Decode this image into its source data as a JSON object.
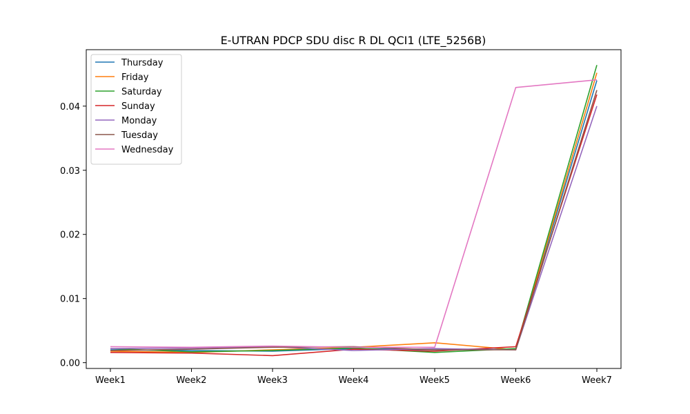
{
  "chart_data": {
    "type": "line",
    "title": "E-UTRAN PDCP SDU disc R DL QCI1 (LTE_5256B)",
    "xlabel": "",
    "ylabel": "",
    "categories": [
      "Week1",
      "Week2",
      "Week3",
      "Week4",
      "Week5",
      "Week6",
      "Week7"
    ],
    "yticks": [
      "0.00",
      "0.01",
      "0.02",
      "0.03",
      "0.04"
    ],
    "ylim": [
      -0.0009,
      0.0488
    ],
    "grid": false,
    "legend_position": "top-left",
    "series": [
      {
        "name": "Thursday",
        "color": "#1f77b4",
        "values": [
          0.002,
          0.0019,
          0.0018,
          0.0022,
          0.002,
          0.0021,
          0.044
        ]
      },
      {
        "name": "Friday",
        "color": "#ff7f0e",
        "values": [
          0.0018,
          0.0016,
          0.002,
          0.0024,
          0.0031,
          0.002,
          0.0452
        ]
      },
      {
        "name": "Saturday",
        "color": "#2ca02c",
        "values": [
          0.0022,
          0.0017,
          0.0019,
          0.0023,
          0.0016,
          0.0022,
          0.0464
        ]
      },
      {
        "name": "Sunday",
        "color": "#d62728",
        "values": [
          0.0016,
          0.0015,
          0.0011,
          0.0021,
          0.0018,
          0.0025,
          0.0418
        ]
      },
      {
        "name": "Monday",
        "color": "#9467bd",
        "values": [
          0.0022,
          0.0023,
          0.0025,
          0.0019,
          0.0022,
          0.002,
          0.04
        ]
      },
      {
        "name": "Tuesday",
        "color": "#8c564b",
        "values": [
          0.0019,
          0.0021,
          0.0024,
          0.0025,
          0.002,
          0.002,
          0.0425
        ]
      },
      {
        "name": "Wednesday",
        "color": "#e377c2",
        "values": [
          0.0025,
          0.0024,
          0.0026,
          0.0024,
          0.0024,
          0.0429,
          0.0441
        ]
      }
    ]
  }
}
